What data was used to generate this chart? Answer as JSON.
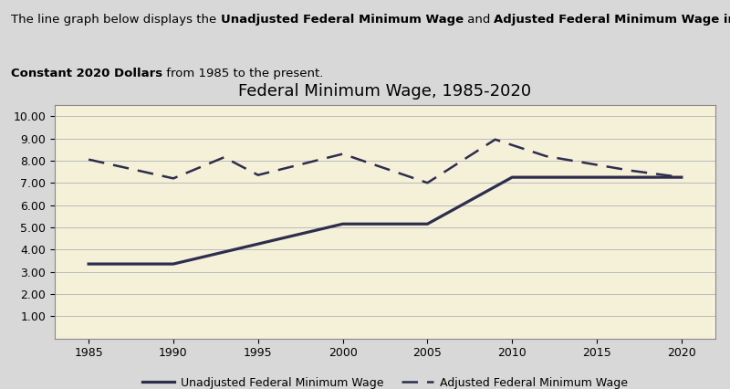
{
  "title": "Federal Minimum Wage, 1985-2020",
  "years_unadj": [
    1985,
    1990,
    1995,
    2000,
    2005,
    2010,
    2015,
    2020
  ],
  "unadjusted": [
    3.35,
    3.35,
    4.25,
    5.15,
    5.15,
    7.25,
    7.25,
    7.25
  ],
  "adjusted_years": [
    1985,
    1990,
    1993,
    1995,
    2000,
    2005,
    2009,
    2012,
    2017,
    2020
  ],
  "adjusted": [
    8.05,
    7.2,
    8.15,
    7.35,
    8.3,
    7.0,
    8.95,
    8.2,
    7.55,
    7.25
  ],
  "ylim": [
    0,
    10.5
  ],
  "yticks": [
    1.0,
    2.0,
    3.0,
    4.0,
    5.0,
    6.0,
    7.0,
    8.0,
    9.0,
    10.0
  ],
  "xticks": [
    1985,
    1990,
    1995,
    2000,
    2005,
    2010,
    2015,
    2020
  ],
  "line_color": "#2d2d4e",
  "outer_bg": "#d8d8d8",
  "chart_bg": "#f5f0d8",
  "legend_unadjusted": "Unadjusted Federal Minimum Wage",
  "legend_adjusted": "Adjusted Federal Minimum Wage",
  "subtitle_parts_line1": [
    [
      "The line graph below displays the ",
      false
    ],
    [
      "Unadjusted Federal Minimum Wage",
      true
    ],
    [
      " and ",
      false
    ],
    [
      "Adjusted Federal Minimum Wage in",
      true
    ]
  ],
  "subtitle_parts_line2": [
    [
      "Constant 2020 Dollars",
      true
    ],
    [
      " from 1985 to the present.",
      false
    ]
  ],
  "fontsize_subtitle": 9.5,
  "fontsize_ticks": 9,
  "fontsize_title": 13
}
